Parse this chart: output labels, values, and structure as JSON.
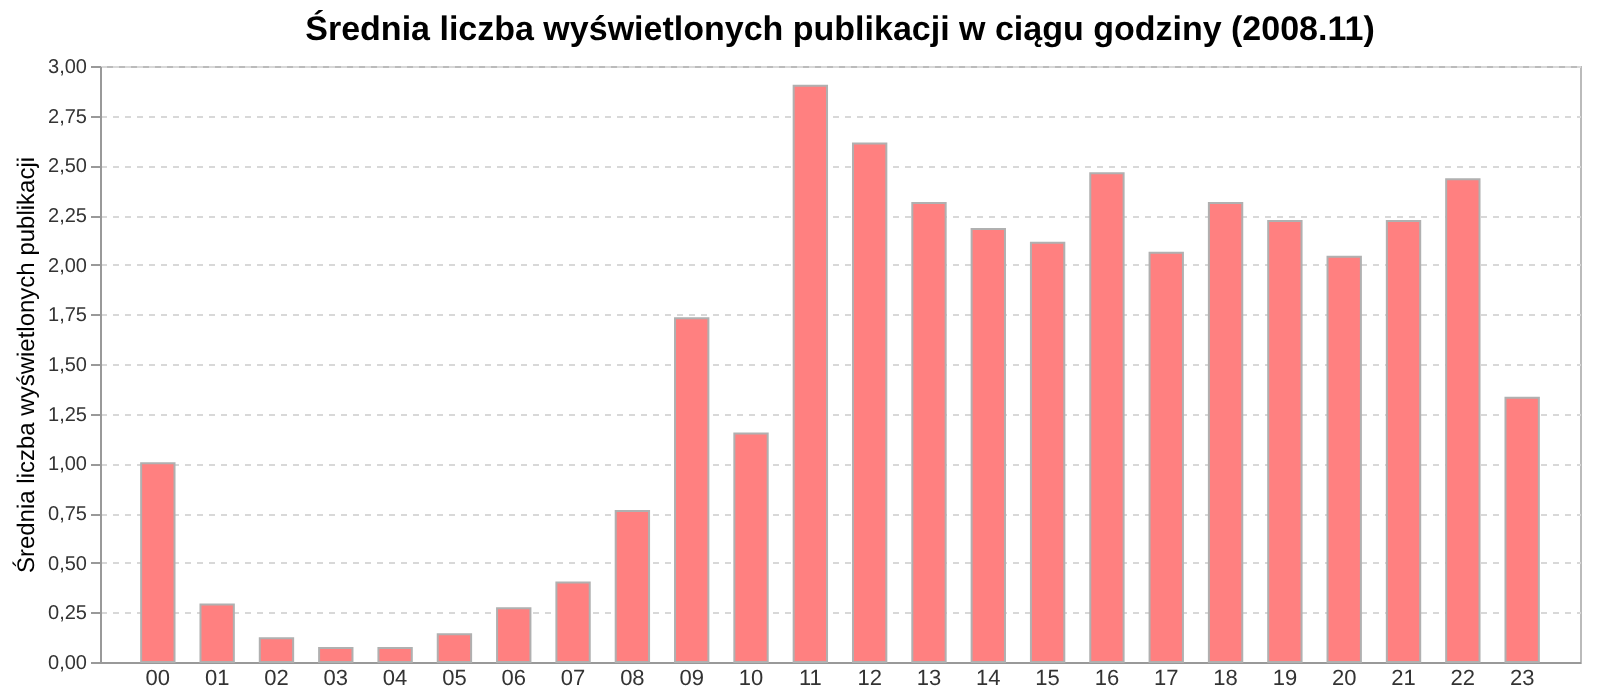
{
  "chart_data": {
    "type": "bar",
    "title": "Średnia liczba wyświetlonych publikacji w ciągu godziny (2008.11)",
    "ylabel": "Średnia liczba wyświetlonych publikacji",
    "categories": [
      "00",
      "01",
      "02",
      "03",
      "04",
      "05",
      "06",
      "07",
      "08",
      "09",
      "10",
      "11",
      "12",
      "13",
      "14",
      "15",
      "16",
      "17",
      "18",
      "19",
      "20",
      "21",
      "22",
      "23"
    ],
    "values": [
      1.0,
      0.29,
      0.12,
      0.07,
      0.07,
      0.14,
      0.27,
      0.4,
      0.76,
      1.73,
      1.15,
      2.9,
      2.61,
      2.31,
      2.18,
      2.11,
      2.46,
      2.06,
      2.31,
      2.22,
      2.04,
      2.22,
      2.43,
      1.33
    ],
    "color": "#ff8080",
    "ylim": [
      0,
      3
    ],
    "yticks": [
      {
        "value": 0,
        "label": "0,00"
      },
      {
        "value": 0.25,
        "label": "0,25"
      },
      {
        "value": 0.5,
        "label": "0,50"
      },
      {
        "value": 0.75,
        "label": "0,75"
      },
      {
        "value": 1,
        "label": "1,00"
      },
      {
        "value": 1.25,
        "label": "1,25"
      },
      {
        "value": 1.5,
        "label": "1,50"
      },
      {
        "value": 1.75,
        "label": "1,75"
      },
      {
        "value": 2,
        "label": "2,00"
      },
      {
        "value": 2.25,
        "label": "2,25"
      },
      {
        "value": 2.5,
        "label": "2,50"
      },
      {
        "value": 2.75,
        "label": "2,75"
      },
      {
        "value": 3,
        "label": "3,00"
      }
    ],
    "grid": "y"
  }
}
